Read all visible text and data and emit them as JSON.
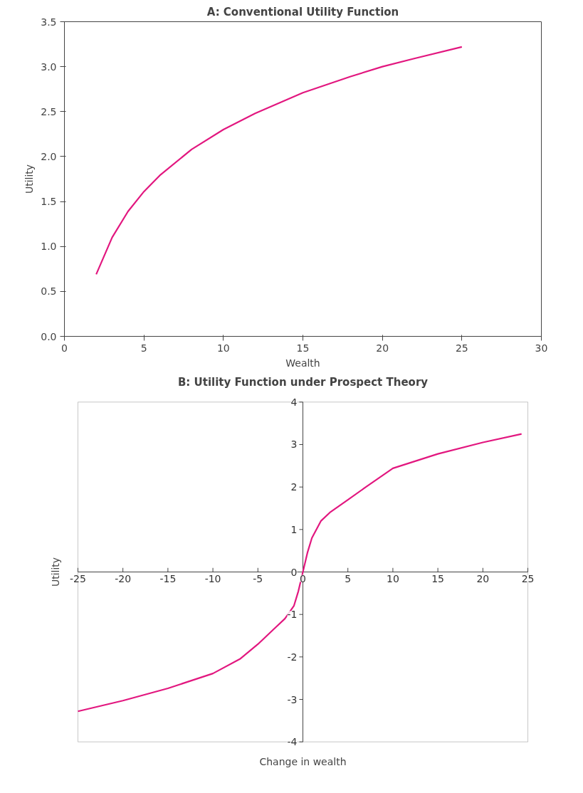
{
  "chart_data": [
    {
      "type": "line",
      "title": "A: Conventional Utility Function",
      "xlabel": "Wealth",
      "ylabel": "Utility",
      "xlim": [
        0,
        30
      ],
      "ylim": [
        0,
        3.5
      ],
      "xticks": [
        0,
        5,
        10,
        15,
        20,
        25,
        30
      ],
      "yticks": [
        {
          "value": 0,
          "label": "0.0"
        },
        0.5,
        {
          "value": 1,
          "label": "1.0"
        },
        1.5,
        {
          "value": 2,
          "label": "2.0"
        },
        2.5,
        {
          "value": 3,
          "label": "3.0"
        },
        3.5
      ],
      "grid": false,
      "series": [
        {
          "color": "#e2177f",
          "x": [
            2,
            3,
            4,
            5,
            6,
            8,
            10,
            12,
            15,
            18,
            20,
            22,
            25
          ],
          "values": [
            0.69,
            1.1,
            1.39,
            1.61,
            1.79,
            2.08,
            2.3,
            2.48,
            2.71,
            2.89,
            3.0,
            3.09,
            3.22
          ]
        }
      ]
    },
    {
      "type": "line",
      "title": "B: Utility Function under Prospect Theory",
      "xlabel": "Change in wealth",
      "ylabel": "Utility",
      "xlim": [
        -25,
        25
      ],
      "ylim": [
        -4,
        4
      ],
      "xticks": [
        -25,
        -20,
        -15,
        -10,
        -5,
        0,
        5,
        10,
        15,
        20,
        25
      ],
      "yticks": [
        -4,
        -3,
        -2,
        -1,
        0,
        1,
        2,
        3,
        4
      ],
      "grid": false,
      "series": [
        {
          "color": "#e2177f",
          "x": [
            -25,
            -20,
            -15,
            -10,
            -7,
            -5,
            -3,
            -2,
            -1,
            -0.5,
            0,
            0.5,
            1,
            2,
            3,
            5,
            7,
            10,
            15,
            20,
            24.3
          ],
          "values": [
            -3.28,
            -3.03,
            -2.74,
            -2.39,
            -2.05,
            -1.7,
            -1.3,
            -1.1,
            -0.8,
            -0.45,
            0,
            0.45,
            0.8,
            1.2,
            1.4,
            1.7,
            2.0,
            2.44,
            2.78,
            3.05,
            3.25
          ]
        }
      ]
    }
  ]
}
